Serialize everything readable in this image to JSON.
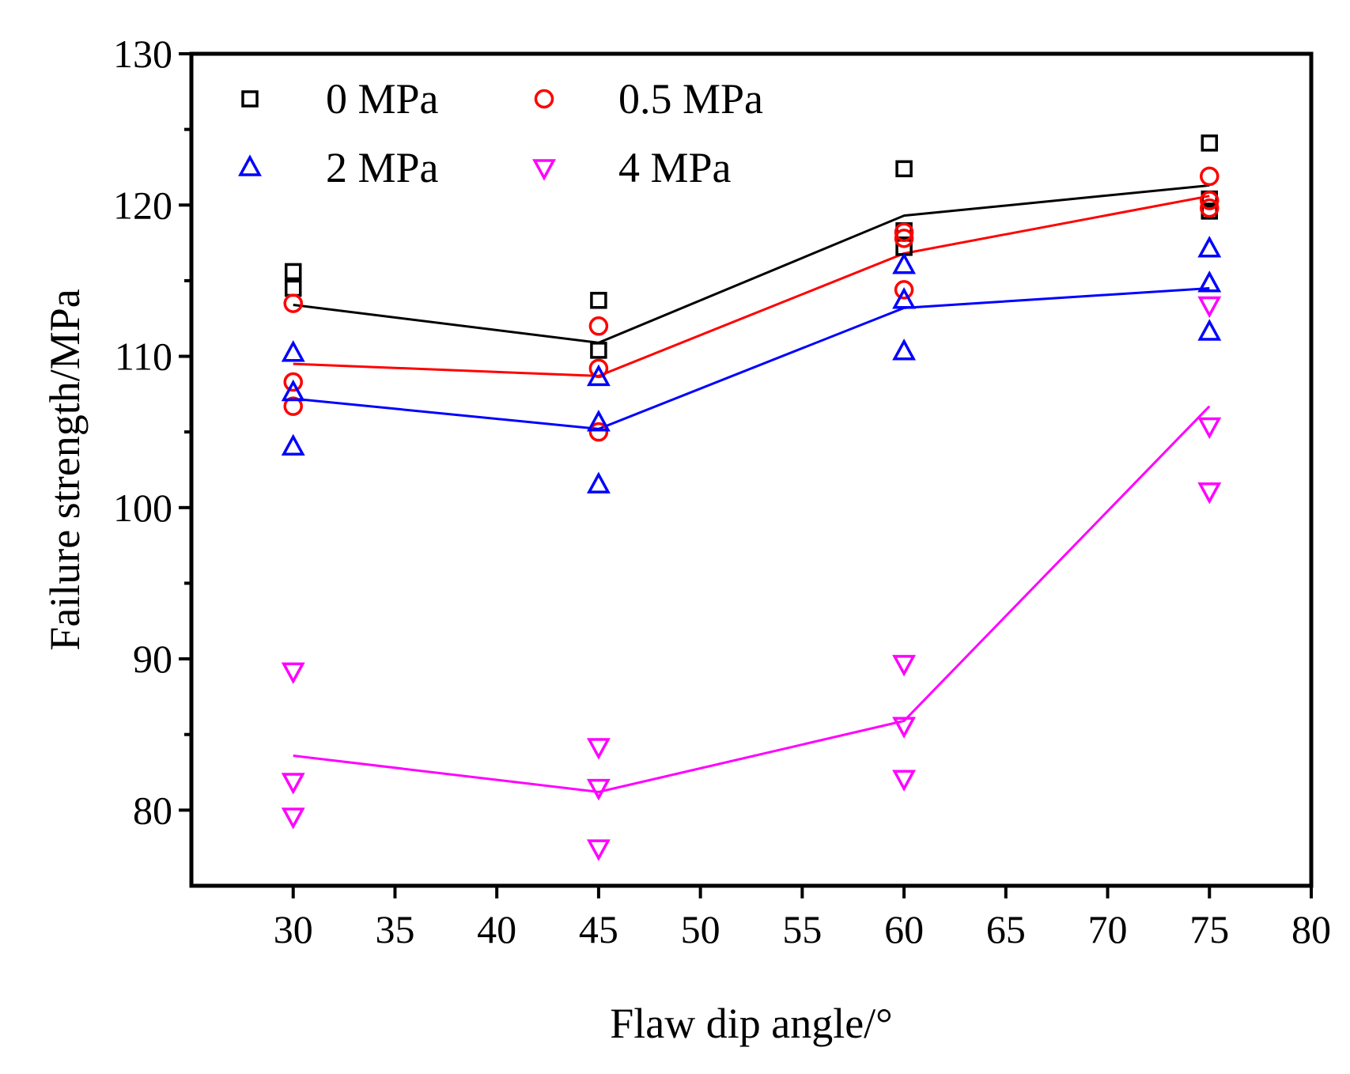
{
  "chart_data": {
    "type": "scatter",
    "title": "",
    "xlabel": "Flaw dip angle/°",
    "ylabel": "Failure strength/MPa",
    "xlim": [
      25,
      80
    ],
    "ylim": [
      75,
      130
    ],
    "x_ticks": [
      30,
      35,
      40,
      45,
      50,
      55,
      60,
      65,
      70,
      75,
      80
    ],
    "y_ticks": [
      80,
      90,
      100,
      110,
      120,
      130
    ],
    "y_minor_ticks": [
      85,
      95,
      105,
      115,
      125
    ],
    "grid": false,
    "legend_position": "top-left",
    "series": [
      {
        "name": "0 MPa",
        "color": "#000000",
        "marker": "square",
        "points": [
          {
            "x": 30,
            "y": 115.6
          },
          {
            "x": 30,
            "y": 114.5
          },
          {
            "x": 45,
            "y": 113.7
          },
          {
            "x": 45,
            "y": 110.4
          },
          {
            "x": 60,
            "y": 122.4
          },
          {
            "x": 60,
            "y": 118.3
          },
          {
            "x": 60,
            "y": 117.2
          },
          {
            "x": 75,
            "y": 124.1
          },
          {
            "x": 75,
            "y": 120.4
          },
          {
            "x": 75,
            "y": 119.6
          }
        ],
        "fit_line": {
          "x": [
            30,
            45,
            60,
            75
          ],
          "y": [
            113.4,
            110.9,
            119.3,
            121.3
          ]
        }
      },
      {
        "name": "0.5 MPa",
        "color": "#ff0000",
        "marker": "circle",
        "points": [
          {
            "x": 30,
            "y": 113.5
          },
          {
            "x": 30,
            "y": 108.3
          },
          {
            "x": 30,
            "y": 106.7
          },
          {
            "x": 45,
            "y": 112.0
          },
          {
            "x": 45,
            "y": 109.2
          },
          {
            "x": 45,
            "y": 105.0
          },
          {
            "x": 60,
            "y": 118.2
          },
          {
            "x": 60,
            "y": 117.8
          },
          {
            "x": 60,
            "y": 114.4
          },
          {
            "x": 75,
            "y": 121.9
          },
          {
            "x": 75,
            "y": 120.3
          },
          {
            "x": 75,
            "y": 119.8
          }
        ],
        "fit_line": {
          "x": [
            30,
            45,
            60,
            75
          ],
          "y": [
            109.5,
            108.7,
            116.8,
            120.6
          ]
        }
      },
      {
        "name": "2 MPa",
        "color": "#0000ff",
        "marker": "triangle-up",
        "points": [
          {
            "x": 30,
            "y": 110.2
          },
          {
            "x": 30,
            "y": 107.6
          },
          {
            "x": 30,
            "y": 104.0
          },
          {
            "x": 45,
            "y": 108.6
          },
          {
            "x": 45,
            "y": 105.6
          },
          {
            "x": 45,
            "y": 101.5
          },
          {
            "x": 60,
            "y": 116.0
          },
          {
            "x": 60,
            "y": 113.7
          },
          {
            "x": 60,
            "y": 110.3
          },
          {
            "x": 75,
            "y": 117.1
          },
          {
            "x": 75,
            "y": 114.8
          },
          {
            "x": 75,
            "y": 111.6
          }
        ],
        "fit_line": {
          "x": [
            30,
            45,
            60,
            75
          ],
          "y": [
            107.2,
            105.2,
            113.2,
            114.5
          ]
        }
      },
      {
        "name": "4 MPa",
        "color": "#ff00ff",
        "marker": "triangle-down",
        "points": [
          {
            "x": 30,
            "y": 89.2
          },
          {
            "x": 30,
            "y": 81.9
          },
          {
            "x": 30,
            "y": 79.6
          },
          {
            "x": 45,
            "y": 84.2
          },
          {
            "x": 45,
            "y": 81.5
          },
          {
            "x": 45,
            "y": 77.5
          },
          {
            "x": 60,
            "y": 89.7
          },
          {
            "x": 60,
            "y": 85.6
          },
          {
            "x": 60,
            "y": 82.1
          },
          {
            "x": 75,
            "y": 113.4
          },
          {
            "x": 75,
            "y": 105.4
          },
          {
            "x": 75,
            "y": 101.1
          }
        ],
        "fit_line": {
          "x": [
            30,
            45,
            60,
            75
          ],
          "y": [
            83.6,
            81.2,
            85.9,
            106.7
          ]
        }
      }
    ]
  }
}
